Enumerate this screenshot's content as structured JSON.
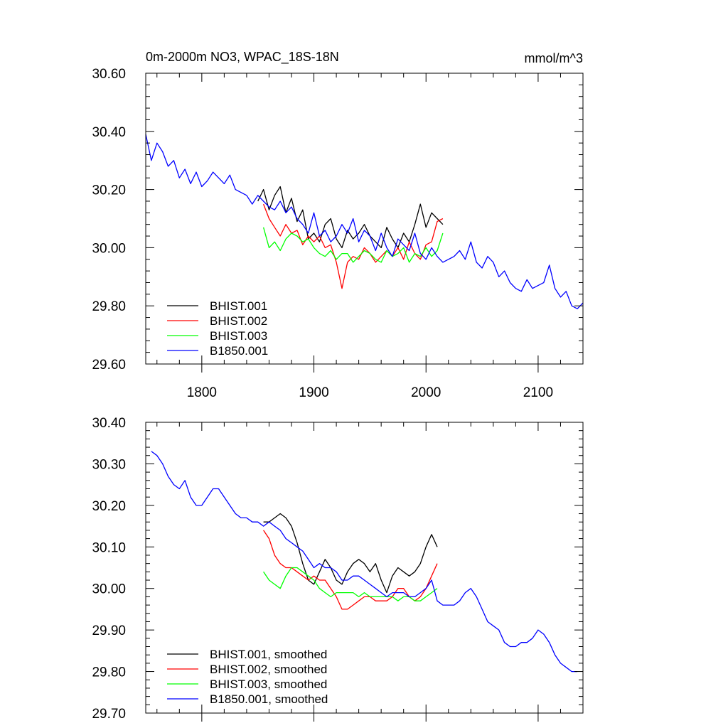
{
  "chart_data": [
    {
      "type": "line",
      "title": "0m-2000m NO3, WPAC_18S-18N",
      "units": "mmol/m^3",
      "xlabel": "",
      "ylabel": "",
      "xlim": [
        1750,
        2140
      ],
      "ylim": [
        29.6,
        30.6
      ],
      "xticks": [
        1800,
        1900,
        2000,
        2100
      ],
      "xtick_labels": [
        "1800",
        "1900",
        "2000",
        "2100"
      ],
      "yticks": [
        29.6,
        29.8,
        30.0,
        30.2,
        30.4,
        30.6
      ],
      "ytick_labels": [
        "29.60",
        "29.80",
        "30.00",
        "30.20",
        "30.40",
        "30.60"
      ],
      "legend_position": "bottom-left",
      "series": [
        {
          "name": "BHIST.001",
          "color": "#000000",
          "x": [
            1850,
            1855,
            1860,
            1865,
            1870,
            1875,
            1880,
            1885,
            1890,
            1895,
            1900,
            1905,
            1910,
            1915,
            1920,
            1925,
            1930,
            1935,
            1940,
            1945,
            1950,
            1955,
            1960,
            1965,
            1970,
            1975,
            1980,
            1985,
            1990,
            1995,
            2000,
            2005,
            2010,
            2015
          ],
          "values": [
            30.16,
            30.2,
            30.13,
            30.18,
            30.21,
            30.12,
            30.17,
            30.09,
            30.13,
            30.03,
            30.05,
            30.02,
            30.08,
            30.1,
            30.03,
            30.0,
            30.06,
            30.03,
            30.05,
            30.08,
            30.04,
            30.02,
            30.0,
            30.07,
            30.03,
            30.0,
            30.05,
            30.02,
            30.08,
            30.15,
            30.07,
            30.12,
            30.1,
            30.08
          ]
        },
        {
          "name": "BHIST.002",
          "color": "#ff0000",
          "x": [
            1855,
            1860,
            1865,
            1870,
            1875,
            1880,
            1885,
            1890,
            1895,
            1900,
            1905,
            1910,
            1915,
            1920,
            1925,
            1930,
            1935,
            1940,
            1945,
            1950,
            1955,
            1960,
            1965,
            1970,
            1975,
            1980,
            1985,
            1990,
            1995,
            2000,
            2005,
            2010,
            2015
          ],
          "values": [
            30.15,
            30.1,
            30.07,
            30.04,
            30.08,
            30.05,
            30.06,
            30.01,
            30.04,
            30.02,
            30.04,
            30.0,
            30.01,
            29.95,
            29.86,
            29.95,
            29.97,
            29.96,
            30.0,
            29.98,
            29.95,
            29.97,
            29.99,
            29.97,
            30.0,
            29.96,
            30.02,
            29.98,
            29.96,
            30.01,
            30.02,
            30.09,
            30.1
          ]
        },
        {
          "name": "BHIST.003",
          "color": "#00ff00",
          "x": [
            1855,
            1860,
            1865,
            1870,
            1875,
            1880,
            1885,
            1890,
            1895,
            1900,
            1905,
            1910,
            1915,
            1920,
            1925,
            1930,
            1935,
            1940,
            1945,
            1950,
            1955,
            1960,
            1965,
            1970,
            1975,
            1980,
            1985,
            1990,
            1995,
            2000,
            2005,
            2010,
            2015
          ],
          "values": [
            30.07,
            30.0,
            30.02,
            29.99,
            30.03,
            30.05,
            30.04,
            30.02,
            30.03,
            30.0,
            29.98,
            29.97,
            29.99,
            29.96,
            29.98,
            29.98,
            29.95,
            29.97,
            29.99,
            29.98,
            29.96,
            29.95,
            29.99,
            29.97,
            29.98,
            30.0,
            29.95,
            29.98,
            29.97,
            30.0,
            29.97,
            29.99,
            30.05
          ]
        },
        {
          "name": "B1850.001",
          "color": "#0000ff",
          "x": [
            1750,
            1755,
            1760,
            1765,
            1770,
            1775,
            1780,
            1785,
            1790,
            1795,
            1800,
            1805,
            1810,
            1815,
            1820,
            1825,
            1830,
            1835,
            1840,
            1845,
            1850,
            1855,
            1860,
            1865,
            1870,
            1875,
            1880,
            1885,
            1890,
            1895,
            1900,
            1905,
            1910,
            1915,
            1920,
            1925,
            1930,
            1935,
            1940,
            1945,
            1950,
            1955,
            1960,
            1965,
            1970,
            1975,
            1980,
            1985,
            1990,
            1995,
            2000,
            2005,
            2010,
            2015,
            2020,
            2025,
            2030,
            2035,
            2040,
            2045,
            2050,
            2055,
            2060,
            2065,
            2070,
            2075,
            2080,
            2085,
            2090,
            2095,
            2100,
            2105,
            2110,
            2115,
            2120,
            2125,
            2130,
            2135,
            2140
          ],
          "values": [
            30.39,
            30.3,
            30.36,
            30.33,
            30.28,
            30.3,
            30.24,
            30.27,
            30.22,
            30.26,
            30.21,
            30.23,
            30.26,
            30.24,
            30.22,
            30.25,
            30.2,
            30.19,
            30.18,
            30.15,
            30.18,
            30.16,
            30.14,
            30.13,
            30.16,
            30.12,
            30.14,
            30.1,
            30.08,
            30.05,
            30.12,
            30.04,
            30.06,
            30.02,
            30.04,
            30.08,
            30.05,
            30.1,
            30.02,
            30.06,
            30.04,
            29.99,
            30.05,
            30.0,
            29.97,
            30.03,
            30.01,
            29.99,
            30.05,
            29.98,
            29.96,
            30.0,
            29.97,
            29.95,
            29.96,
            29.97,
            29.99,
            29.96,
            30.02,
            29.95,
            29.93,
            29.97,
            29.95,
            29.9,
            29.92,
            29.88,
            29.86,
            29.85,
            29.89,
            29.86,
            29.87,
            29.88,
            29.94,
            29.86,
            29.83,
            29.85,
            29.8,
            29.79,
            29.81
          ]
        }
      ]
    },
    {
      "type": "line",
      "title": "",
      "units": "",
      "xlabel": "",
      "ylabel": "",
      "xlim": [
        1750,
        2140
      ],
      "ylim": [
        29.7,
        30.4
      ],
      "xticks": [
        1800,
        1900,
        2000,
        2100
      ],
      "xtick_labels": [],
      "yticks": [
        29.7,
        29.8,
        29.9,
        30.0,
        30.1,
        30.2,
        30.3,
        30.4
      ],
      "ytick_labels": [
        "29.70",
        "29.80",
        "29.90",
        "30.00",
        "30.10",
        "30.20",
        "30.30",
        "30.40"
      ],
      "legend_position": "bottom-left",
      "series": [
        {
          "name": "BHIST.001, smoothed",
          "color": "#000000",
          "x": [
            1855,
            1860,
            1865,
            1870,
            1875,
            1880,
            1885,
            1890,
            1895,
            1900,
            1905,
            1910,
            1915,
            1920,
            1925,
            1930,
            1935,
            1940,
            1945,
            1950,
            1955,
            1960,
            1965,
            1970,
            1975,
            1980,
            1985,
            1990,
            1995,
            2000,
            2005,
            2010
          ],
          "values": [
            30.16,
            30.16,
            30.17,
            30.18,
            30.17,
            30.15,
            30.11,
            30.06,
            30.02,
            30.01,
            30.04,
            30.07,
            30.05,
            30.02,
            30.01,
            30.04,
            30.06,
            30.07,
            30.06,
            30.04,
            30.06,
            30.02,
            29.99,
            30.03,
            30.05,
            30.04,
            30.03,
            30.04,
            30.06,
            30.1,
            30.13,
            30.1
          ]
        },
        {
          "name": "BHIST.002, smoothed",
          "color": "#ff0000",
          "x": [
            1855,
            1860,
            1865,
            1870,
            1875,
            1880,
            1885,
            1890,
            1895,
            1900,
            1905,
            1910,
            1915,
            1920,
            1925,
            1930,
            1935,
            1940,
            1945,
            1950,
            1955,
            1960,
            1965,
            1970,
            1975,
            1980,
            1985,
            1990,
            1995,
            2000,
            2005,
            2010
          ],
          "values": [
            30.14,
            30.12,
            30.08,
            30.06,
            30.05,
            30.05,
            30.04,
            30.03,
            30.02,
            30.03,
            30.02,
            30.02,
            30.0,
            29.98,
            29.95,
            29.95,
            29.96,
            29.97,
            29.98,
            29.98,
            29.97,
            29.97,
            29.97,
            29.98,
            30.0,
            30.0,
            29.98,
            29.97,
            29.98,
            30.0,
            30.03,
            30.06
          ]
        },
        {
          "name": "BHIST.003, smoothed",
          "color": "#00ff00",
          "x": [
            1855,
            1860,
            1865,
            1870,
            1875,
            1880,
            1885,
            1890,
            1895,
            1900,
            1905,
            1910,
            1915,
            1920,
            1925,
            1930,
            1935,
            1940,
            1945,
            1950,
            1955,
            1960,
            1965,
            1970,
            1975,
            1980,
            1985,
            1990,
            1995,
            2000,
            2005,
            2010
          ],
          "values": [
            30.04,
            30.02,
            30.01,
            30.0,
            30.03,
            30.05,
            30.05,
            30.04,
            30.03,
            30.02,
            30.0,
            29.99,
            29.98,
            29.99,
            29.99,
            29.99,
            29.99,
            29.98,
            29.99,
            29.98,
            29.98,
            29.98,
            29.98,
            29.98,
            29.97,
            29.98,
            29.98,
            29.97,
            29.97,
            29.98,
            29.99,
            30.0
          ]
        },
        {
          "name": "B1850.001, smoothed",
          "color": "#0000ff",
          "x": [
            1755,
            1760,
            1765,
            1770,
            1775,
            1780,
            1785,
            1790,
            1795,
            1800,
            1805,
            1810,
            1815,
            1820,
            1825,
            1830,
            1835,
            1840,
            1845,
            1850,
            1855,
            1860,
            1865,
            1870,
            1875,
            1880,
            1885,
            1890,
            1895,
            1900,
            1905,
            1910,
            1915,
            1920,
            1925,
            1930,
            1935,
            1940,
            1945,
            1950,
            1955,
            1960,
            1965,
            1970,
            1975,
            1980,
            1985,
            1990,
            1995,
            2000,
            2005,
            2010,
            2015,
            2020,
            2025,
            2030,
            2035,
            2040,
            2045,
            2050,
            2055,
            2060,
            2065,
            2070,
            2075,
            2080,
            2085,
            2090,
            2095,
            2100,
            2105,
            2110,
            2115,
            2120,
            2125,
            2130,
            2135
          ],
          "values": [
            30.33,
            30.32,
            30.3,
            30.27,
            30.25,
            30.24,
            30.26,
            30.22,
            30.2,
            30.2,
            30.22,
            30.24,
            30.24,
            30.22,
            30.2,
            30.18,
            30.17,
            30.17,
            30.16,
            30.16,
            30.15,
            30.16,
            30.15,
            30.14,
            30.12,
            30.11,
            30.1,
            30.09,
            30.07,
            30.05,
            30.06,
            30.05,
            30.05,
            30.04,
            30.02,
            30.02,
            30.03,
            30.03,
            30.02,
            30.01,
            30.0,
            29.99,
            29.98,
            29.99,
            29.99,
            29.99,
            29.98,
            29.98,
            29.99,
            30.0,
            30.02,
            29.97,
            29.96,
            29.96,
            29.96,
            29.97,
            29.99,
            30.0,
            29.98,
            29.95,
            29.92,
            29.91,
            29.9,
            29.87,
            29.86,
            29.86,
            29.87,
            29.87,
            29.88,
            29.9,
            29.89,
            29.87,
            29.84,
            29.82,
            29.81,
            29.8,
            29.8
          ]
        }
      ]
    }
  ]
}
